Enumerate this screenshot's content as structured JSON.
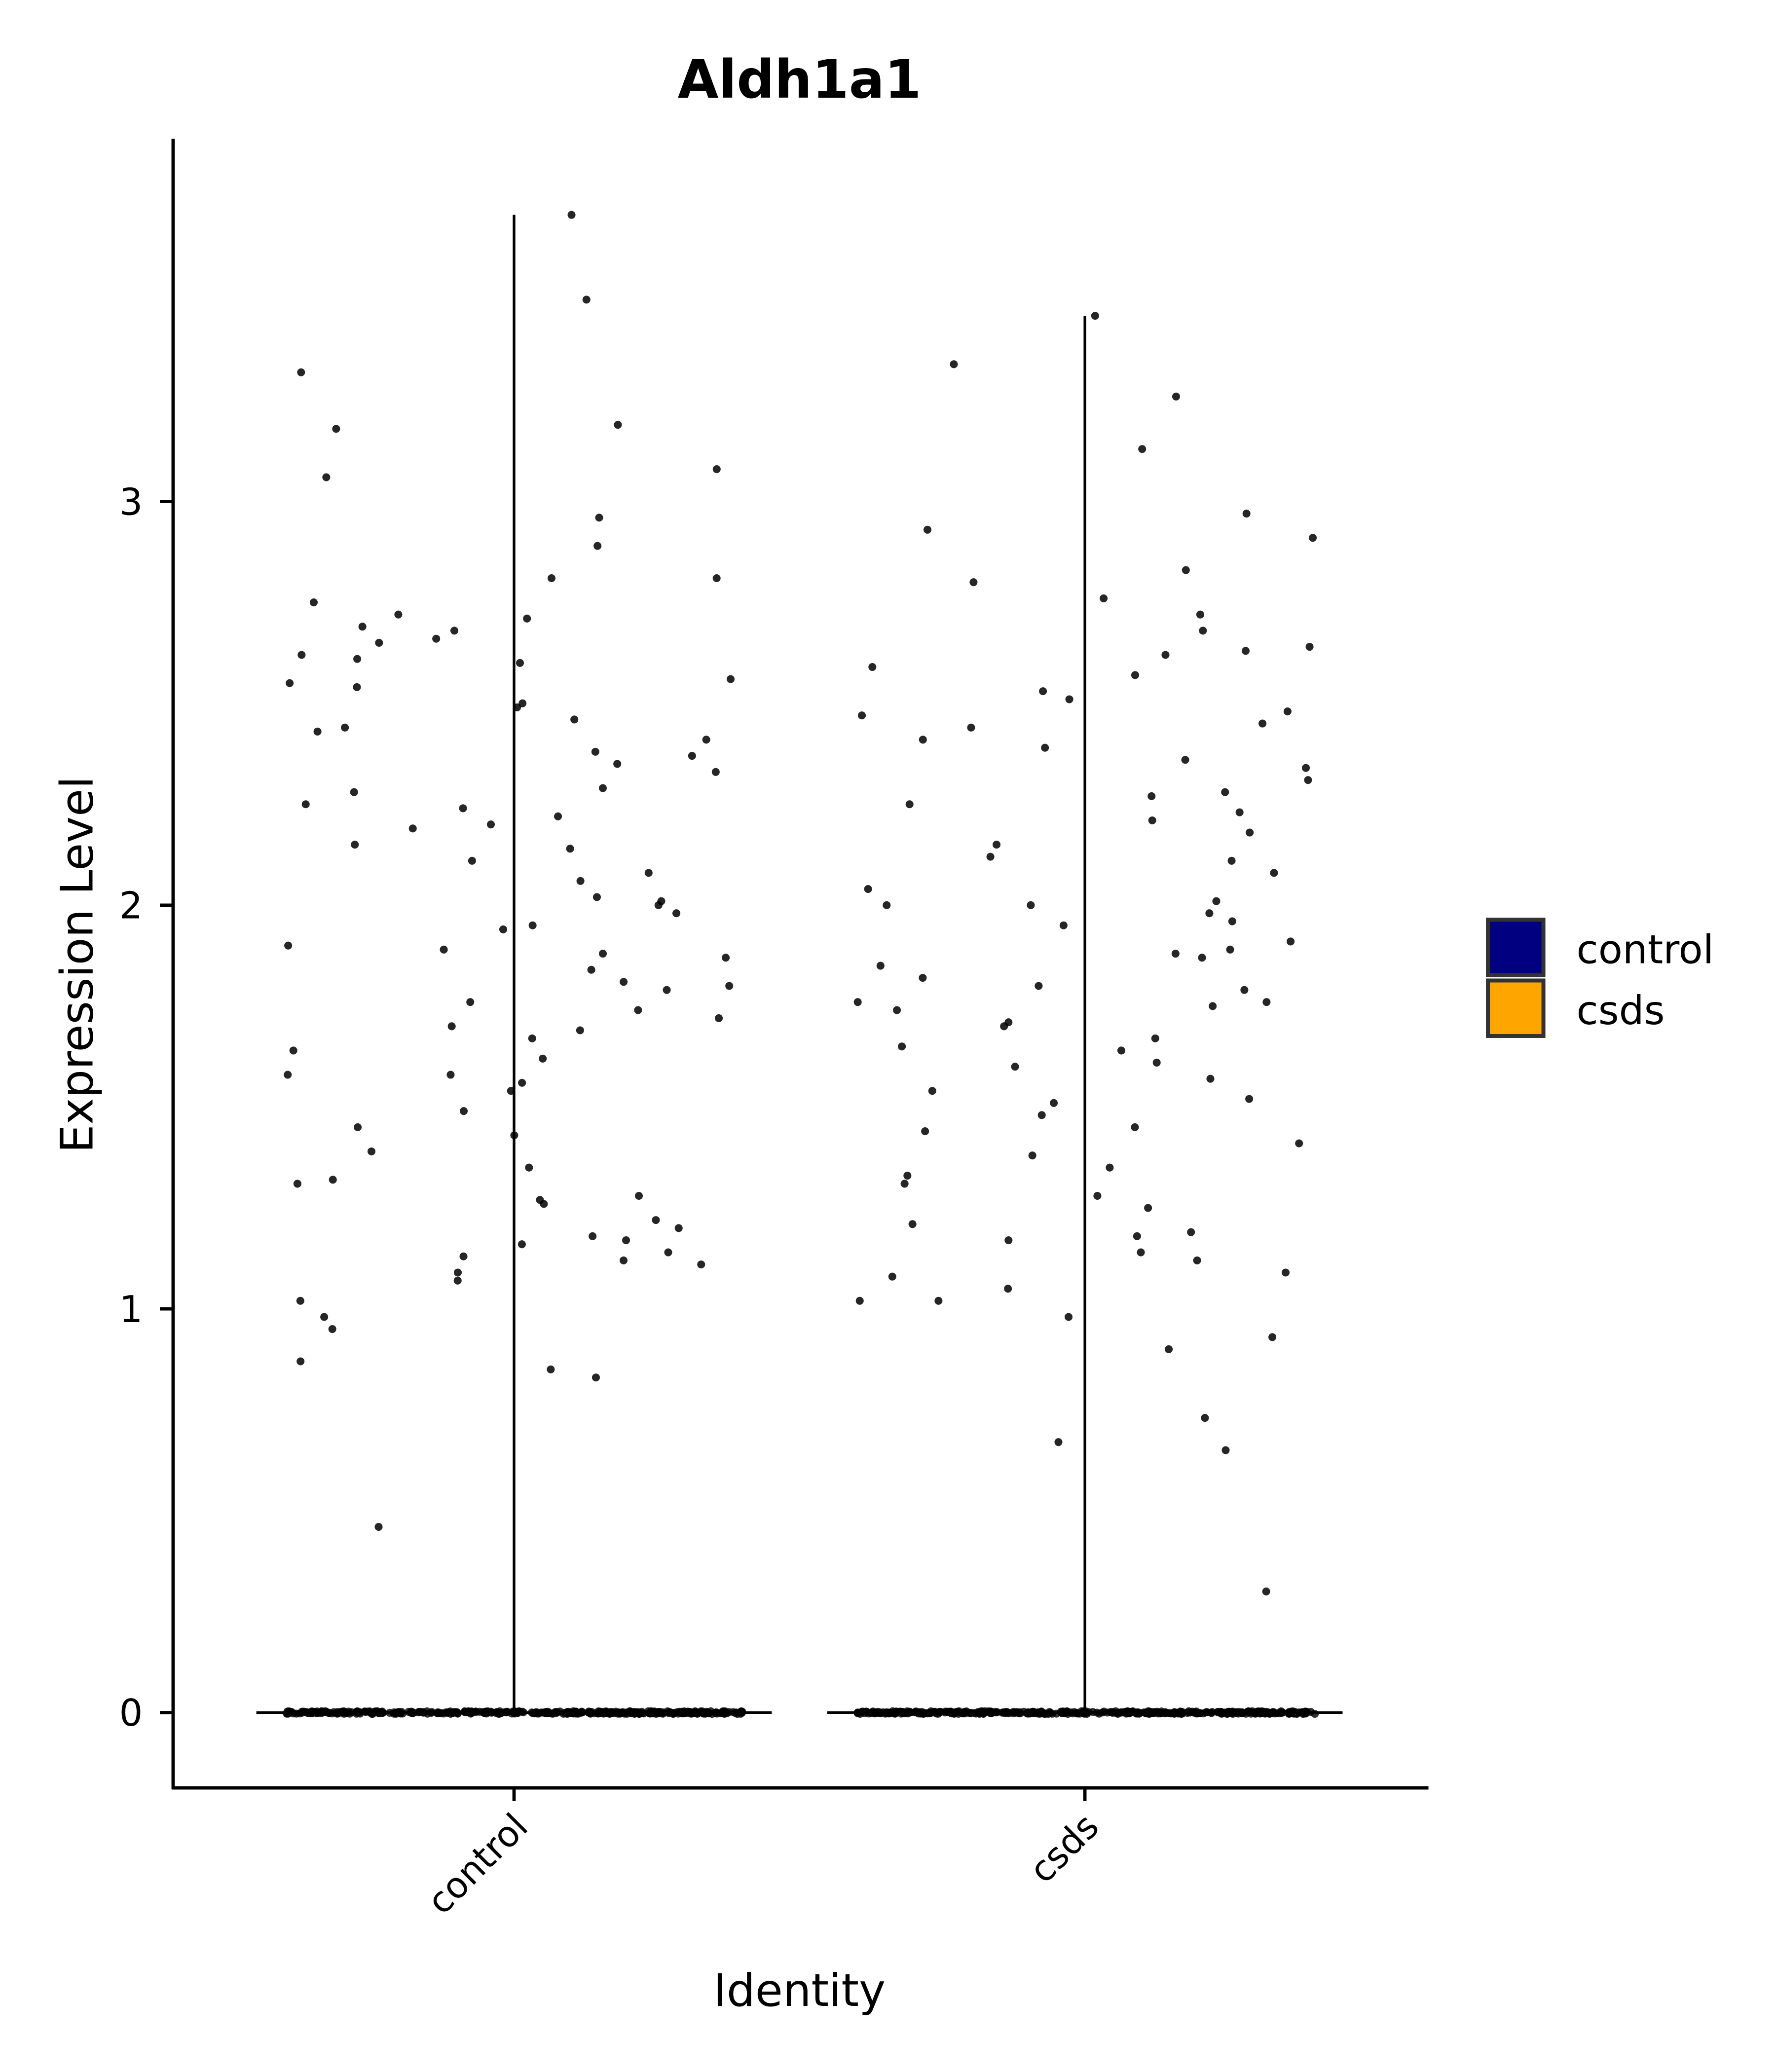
{
  "chart_data": {
    "type": "violin",
    "title": "Aldh1a1",
    "xlabel": "Identity",
    "ylabel": "Expression Level",
    "categories": [
      "control",
      "csds"
    ],
    "yticks": [
      0,
      1,
      2,
      3
    ],
    "ylim": [
      -0.18,
      3.9
    ],
    "grid": false,
    "legend": {
      "placement": "right",
      "entries": [
        {
          "label": "control",
          "color": "#000080"
        },
        {
          "label": "csds",
          "color": "#FFA500"
        }
      ]
    },
    "violin_max": {
      "control": 3.71,
      "csds": 3.46
    },
    "point_color": "#000000",
    "points": {
      "control": [
        3.71,
        3.5,
        3.32,
        3.08,
        3.06,
        3.18,
        3.19,
        2.96,
        2.89,
        2.81,
        2.81,
        2.75,
        2.72,
        2.69,
        2.68,
        2.66,
        2.65,
        2.62,
        2.61,
        2.6,
        2.56,
        2.54,
        2.5,
        2.46,
        2.44,
        2.41,
        2.38,
        2.35,
        2.33,
        2.29,
        2.28,
        2.24,
        2.2,
        2.19,
        2.15,
        2.11,
        2.08,
        2.06,
        2.02,
        2.0,
        1.98,
        1.95,
        1.9,
        1.89,
        1.87,
        1.84,
        1.81,
        1.79,
        1.76,
        1.74,
        1.7,
        1.67,
        1.64,
        1.62,
        1.58,
        1.56,
        1.54,
        1.49,
        1.45,
        1.43,
        1.39,
        1.35,
        1.32,
        1.31,
        1.28,
        1.26,
        1.22,
        1.2,
        1.18,
        1.17,
        1.14,
        1.13,
        1.11,
        1.09,
        1.07,
        1.02,
        0.98,
        0.95,
        0.87,
        0.85,
        0.83,
        0.46,
        2.55,
        2.25,
        1.88,
        1.8,
        2.37,
        2.01,
        1.72,
        1.12,
        1.27,
        2.14,
        2.43,
        1.58,
        1.94,
        2.71,
        1.16,
        2.22,
        1.69,
        2.49
      ],
      "csds": [
        3.46,
        3.34,
        3.26,
        3.13,
        2.97,
        2.93,
        2.91,
        2.83,
        2.8,
        2.76,
        2.72,
        2.68,
        2.64,
        2.63,
        2.59,
        2.57,
        2.53,
        2.51,
        2.47,
        2.45,
        2.41,
        2.39,
        2.36,
        2.34,
        2.31,
        2.28,
        2.25,
        2.21,
        2.18,
        2.15,
        2.11,
        2.08,
        2.04,
        2.01,
        1.98,
        1.95,
        1.91,
        1.89,
        1.85,
        1.82,
        1.79,
        1.76,
        1.74,
        1.71,
        1.67,
        1.64,
        1.61,
        1.57,
        1.54,
        1.51,
        1.48,
        1.44,
        1.41,
        1.38,
        1.35,
        1.31,
        1.28,
        1.25,
        1.21,
        1.19,
        1.17,
        1.14,
        1.12,
        1.08,
        1.05,
        1.02,
        0.98,
        0.93,
        0.9,
        0.73,
        0.67,
        0.65,
        0.3,
        1.8,
        2.0,
        1.75,
        1.65,
        2.48,
        1.18,
        1.6,
        2.23,
        1.88,
        1.52,
        2.0,
        1.33,
        1.7,
        2.12,
        1.02,
        1.96,
        2.44,
        1.76,
        1.45,
        2.27,
        1.09,
        1.87,
        2.62
      ]
    }
  }
}
